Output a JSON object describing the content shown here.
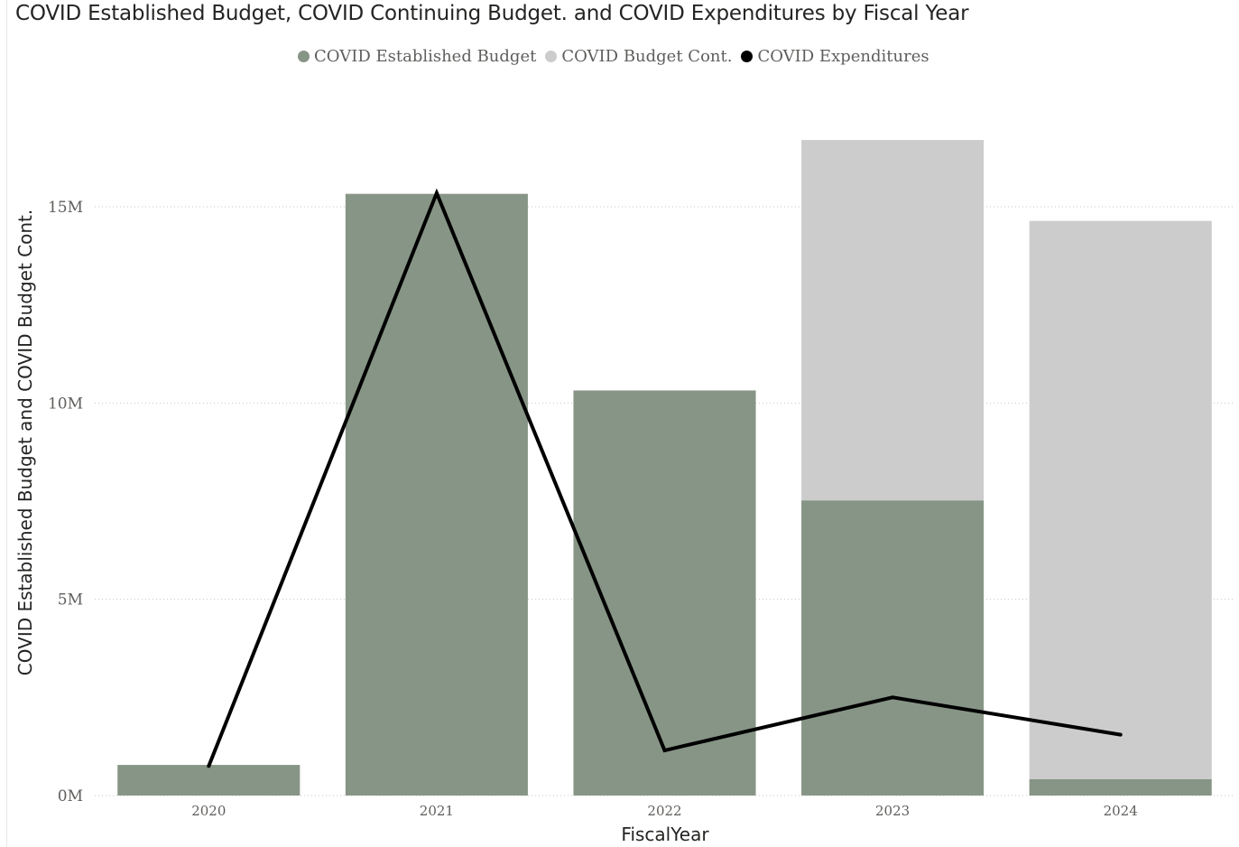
{
  "chart_data": {
    "type": "bar",
    "title": "COVID Established Budget, COVID Continuing Budget. and COVID Expenditures by Fiscal Year",
    "xlabel": "FiscalYear",
    "ylabel": "COVID Established Budget and COVID Budget Cont.",
    "categories": [
      "2020",
      "2021",
      "2022",
      "2023",
      "2024"
    ],
    "series": [
      {
        "name": "COVID Established Budget",
        "kind": "bar",
        "color": "#879586",
        "values": [
          0.78,
          15.33,
          10.32,
          7.52,
          0.42
        ]
      },
      {
        "name": "COVID Budget Cont.",
        "kind": "bar",
        "color": "#cccccc",
        "values": [
          0,
          0,
          0,
          9.18,
          14.22
        ]
      },
      {
        "name": "COVID Expenditures",
        "kind": "line",
        "color": "#000000",
        "values": [
          0.75,
          15.35,
          1.15,
          2.5,
          1.55
        ]
      }
    ],
    "stacked": true,
    "unit": "M",
    "ylim": [
      0,
      17
    ],
    "yticks": [
      0,
      5,
      10,
      15
    ],
    "ytick_labels": [
      "0M",
      "5M",
      "10M",
      "15M"
    ],
    "grid": true,
    "legend_position": "top-center"
  }
}
